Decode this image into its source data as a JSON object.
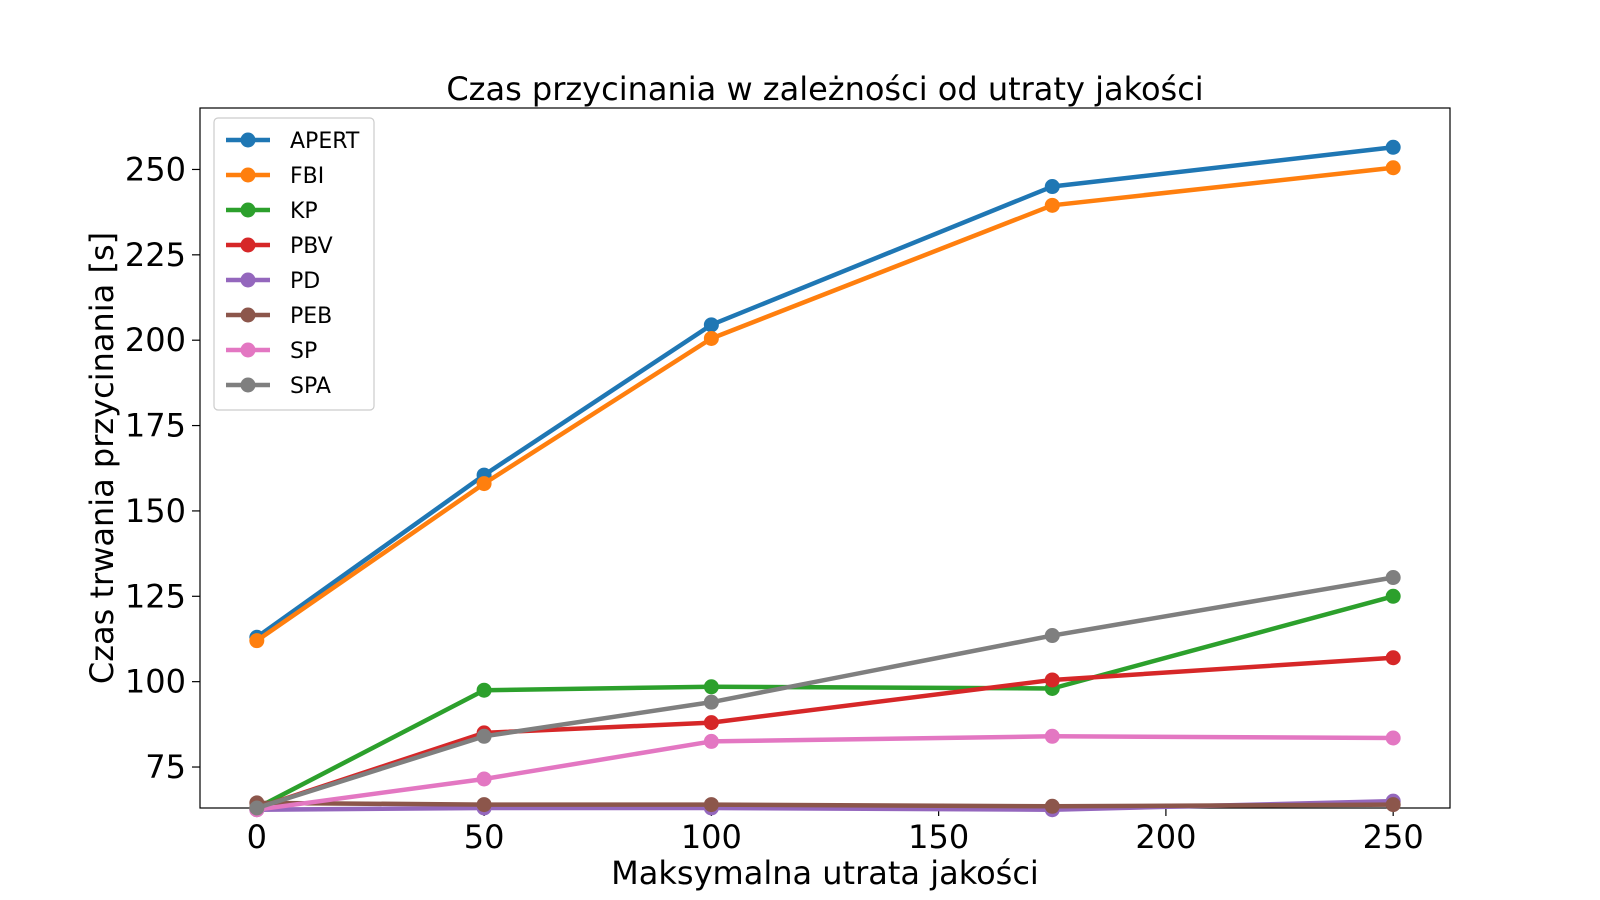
{
  "chart_data": {
    "type": "line",
    "title": "Czas przycinania w zależności od utraty jakości",
    "xlabel": "Maksymalna utrata jakości",
    "ylabel": "Czas trwania przycinania [s]",
    "x": [
      0,
      50,
      100,
      175,
      250
    ],
    "xlim": [
      -12.5,
      262.5
    ],
    "ylim": [
      63,
      268
    ],
    "xticks": [
      0,
      50,
      100,
      150,
      200,
      250
    ],
    "yticks": [
      75,
      100,
      125,
      150,
      175,
      200,
      225,
      250
    ],
    "legend_position": "top-left",
    "grid": false,
    "series": [
      {
        "name": "APERT",
        "color": "#1f77b4",
        "values": [
          113,
          160.5,
          204.5,
          245,
          256.5
        ]
      },
      {
        "name": "FBI",
        "color": "#ff7f0e",
        "values": [
          112,
          158,
          200.5,
          239.5,
          250.5
        ]
      },
      {
        "name": "KP",
        "color": "#2ca02c",
        "values": [
          63,
          97.5,
          98.5,
          98,
          125
        ]
      },
      {
        "name": "PBV",
        "color": "#d62728",
        "values": [
          63,
          85,
          88,
          100.5,
          107
        ]
      },
      {
        "name": "PD",
        "color": "#9467bd",
        "values": [
          62.5,
          63,
          63,
          62.5,
          65
        ]
      },
      {
        "name": "PEB",
        "color": "#8c564b",
        "values": [
          64.5,
          64,
          64,
          63.5,
          64
        ]
      },
      {
        "name": "SP",
        "color": "#e377c2",
        "values": [
          62.5,
          71.5,
          82.5,
          84,
          83.5
        ]
      },
      {
        "name": "SPA",
        "color": "#7f7f7f",
        "values": [
          63,
          84,
          94,
          113.5,
          130.5
        ]
      }
    ]
  }
}
